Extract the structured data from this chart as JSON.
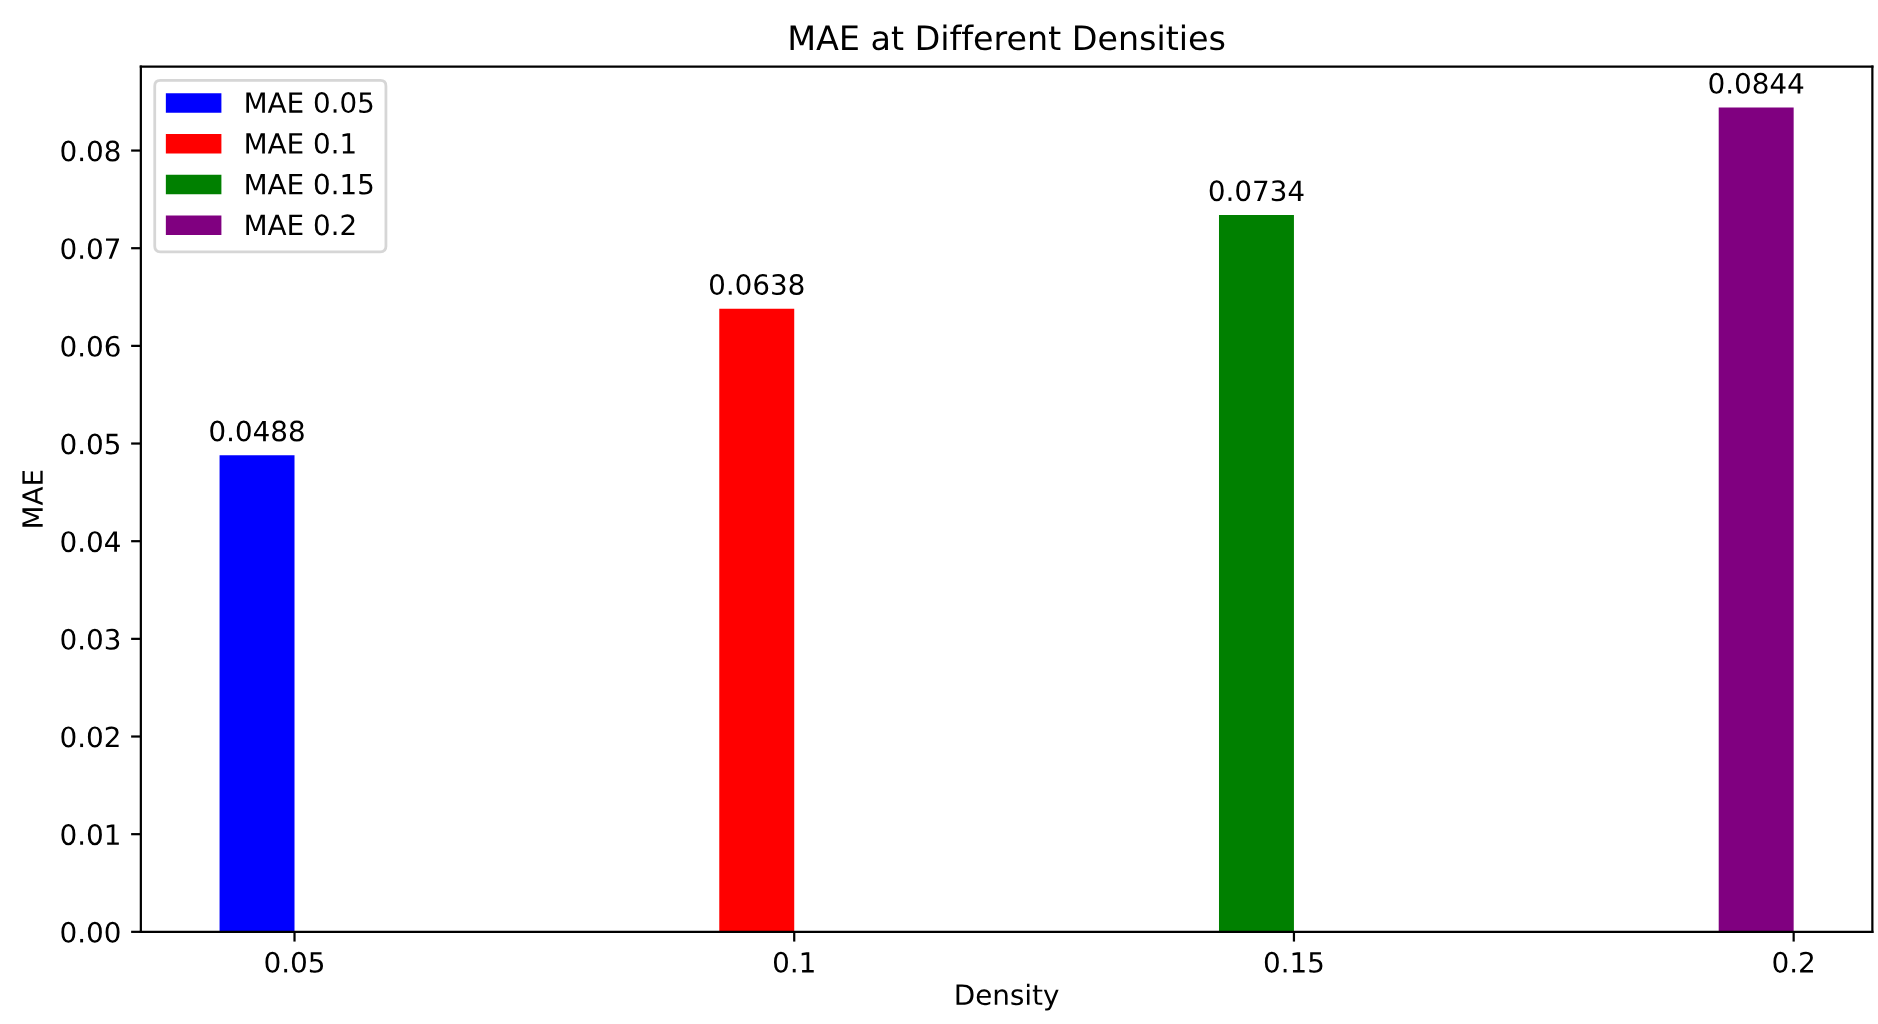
{
  "chart_data": {
    "type": "bar",
    "title": "MAE at Different Densities",
    "xlabel": "Density",
    "ylabel": "MAE",
    "categories": [
      "0.05",
      "0.1",
      "0.15",
      "0.2"
    ],
    "series": [
      {
        "name": "MAE 0.05",
        "color": "#0000ff",
        "values": [
          0.0488,
          null,
          null,
          null
        ]
      },
      {
        "name": "MAE 0.1",
        "color": "#ff0000",
        "values": [
          null,
          0.0638,
          null,
          null
        ]
      },
      {
        "name": "MAE 0.15",
        "color": "#008000",
        "values": [
          null,
          null,
          0.0734,
          null
        ]
      },
      {
        "name": "MAE 0.2",
        "color": "#800080",
        "values": [
          null,
          null,
          null,
          0.0844
        ]
      }
    ],
    "ylim": [
      0,
      0.0886
    ],
    "yticks": [
      {
        "value": 0,
        "label": "0.00"
      },
      {
        "value": 0.01,
        "label": "0.01"
      },
      {
        "value": 0.02,
        "label": "0.02"
      },
      {
        "value": 0.03,
        "label": "0.03"
      },
      {
        "value": 0.04,
        "label": "0.04"
      },
      {
        "value": 0.05,
        "label": "0.05"
      },
      {
        "value": 0.06,
        "label": "0.06"
      },
      {
        "value": 0.07,
        "label": "0.07"
      },
      {
        "value": 0.08,
        "label": "0.08"
      }
    ],
    "data_labels": true,
    "legend": "top left",
    "grid": false
  }
}
